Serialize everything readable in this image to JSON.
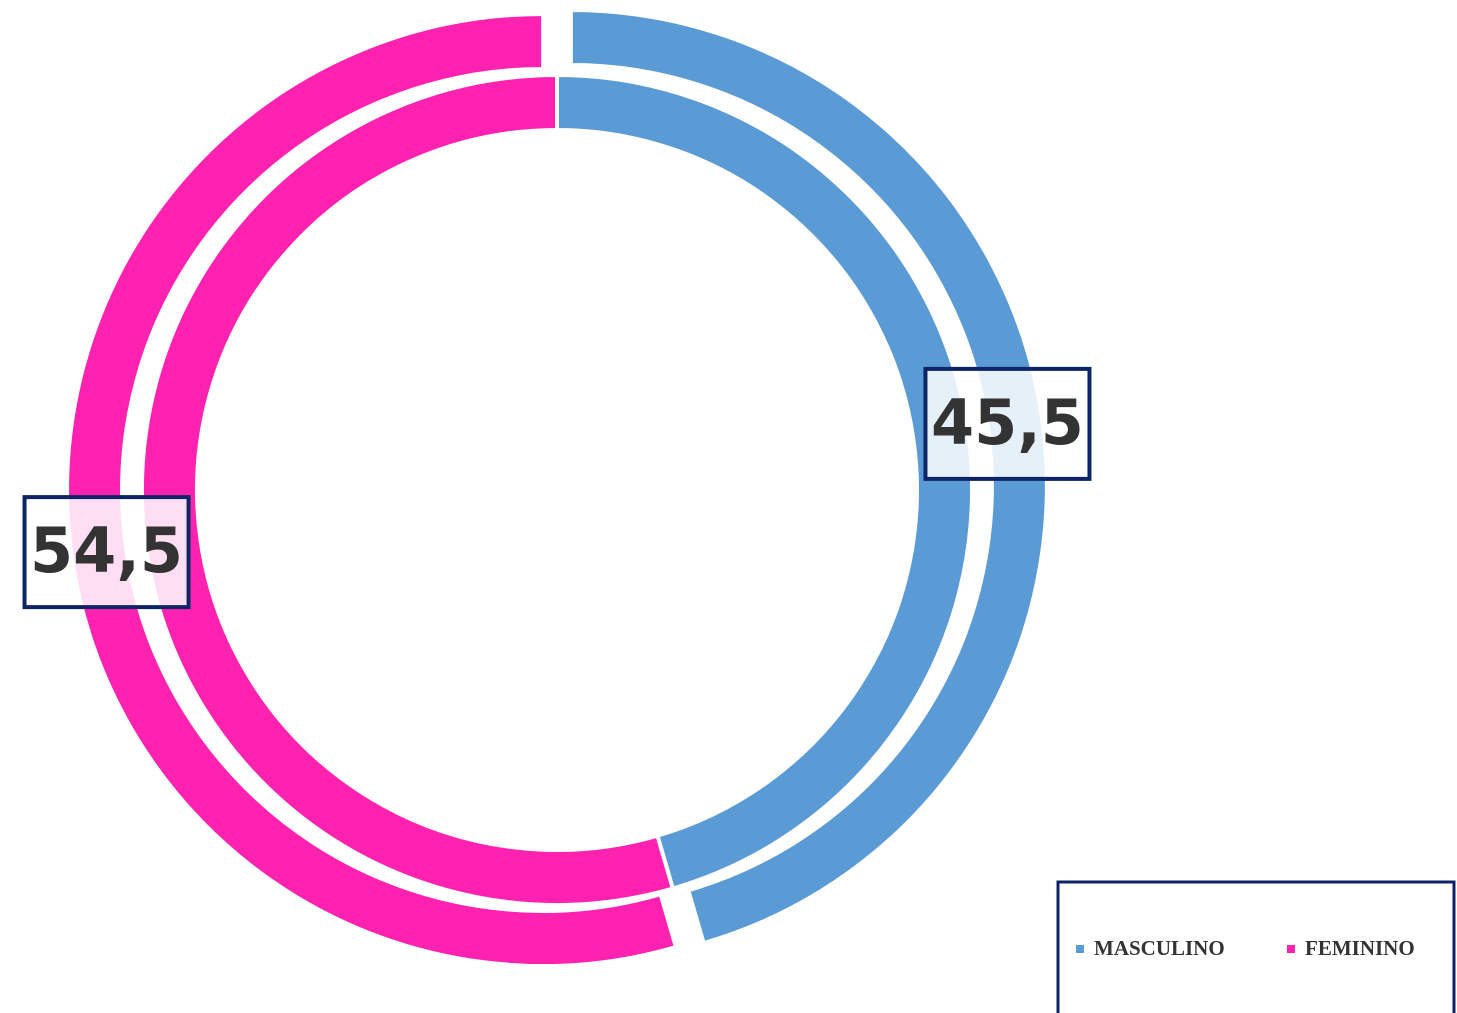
{
  "chart_data": {
    "type": "doughnut",
    "categories": [
      "MASCULINO",
      "FEMININO"
    ],
    "colors": [
      "#5b9bd5",
      "#ff22b0"
    ],
    "rings": [
      {
        "values": [
          45.5,
          54.5
        ],
        "value_labels": [
          "45,5",
          "54,5"
        ]
      },
      {
        "values": [
          45.5,
          54.5
        ]
      }
    ],
    "legend": "bottom-right"
  }
}
